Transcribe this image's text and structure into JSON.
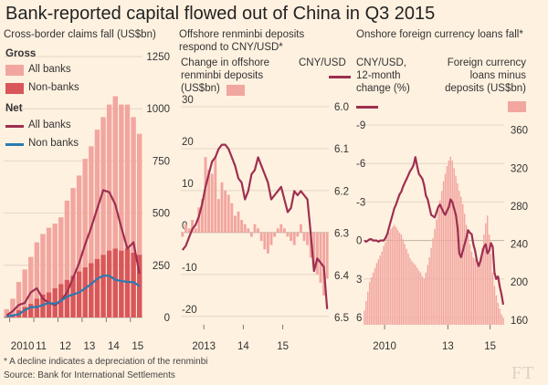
{
  "title": "Bank-reported capital flowed out of China in Q3 2015",
  "footnote": "* A decline indicates a depreciation of the renminbi",
  "source": "Source: Bank for International Settlements",
  "brand": "FT",
  "colors": {
    "bg": "#fff1e0",
    "bar_light": "#f2a6a0",
    "bar_dark": "#d9575a",
    "line_red": "#9e2f50",
    "line_blue": "#2a7ab0",
    "grid": "#e3d6c6",
    "zero": "#bfb3a5"
  },
  "chart_data": [
    {
      "type": "bar",
      "subtitle": "Cross-border claims fall (US$bn)",
      "legend": {
        "gross_label": "Gross",
        "gross_items": [
          "All banks",
          "Non-banks"
        ],
        "net_label": "Net",
        "net_items": [
          "All banks",
          "Non banks"
        ]
      },
      "y_ticks": [
        "1250",
        "1000",
        "750",
        "500",
        "250",
        "0"
      ],
      "y_tick_values": [
        1250,
        1000,
        750,
        500,
        250,
        0
      ],
      "x_ticks": [
        "2010",
        "11",
        "12",
        "13",
        "14",
        "15"
      ],
      "ylim": [
        0,
        1250
      ],
      "quarters_from": "2009Q4",
      "series": [
        {
          "name": "Gross all banks",
          "kind": "bar",
          "values": [
            40,
            90,
            170,
            230,
            290,
            360,
            400,
            430,
            450,
            480,
            560,
            620,
            680,
            760,
            820,
            900,
            960,
            1020,
            1060,
            1020,
            1020,
            960,
            880
          ]
        },
        {
          "name": "Gross non-banks",
          "kind": "bar",
          "values": [
            5,
            15,
            35,
            50,
            65,
            90,
            110,
            120,
            140,
            160,
            180,
            200,
            220,
            240,
            260,
            280,
            300,
            320,
            330,
            320,
            330,
            310,
            300
          ]
        },
        {
          "name": "Net all banks",
          "kind": "line",
          "values": [
            10,
            30,
            60,
            70,
            120,
            140,
            90,
            70,
            60,
            80,
            120,
            190,
            260,
            350,
            430,
            520,
            610,
            600,
            540,
            430,
            330,
            360,
            210
          ]
        },
        {
          "name": "Net non banks",
          "kind": "line",
          "values": [
            5,
            10,
            15,
            35,
            50,
            50,
            60,
            70,
            65,
            80,
            100,
            110,
            120,
            140,
            160,
            185,
            200,
            200,
            180,
            175,
            170,
            170,
            150
          ]
        }
      ]
    },
    {
      "type": "bar",
      "subtitle": "Offshore renminbi deposits respond to CNY/USD*",
      "left_label": "Change in offshore renminbi deposits (US$bn)",
      "right_label": "CNY/USD",
      "left_ticks": [
        "30",
        "20",
        "10",
        "0",
        "-10",
        "-20"
      ],
      "left_tick_values": [
        30,
        20,
        10,
        0,
        -10,
        -20
      ],
      "right_ticks": [
        "6.0",
        "6.1",
        "6.2",
        "6.3",
        "6.4",
        "6.5"
      ],
      "right_tick_values": [
        6.0,
        6.1,
        6.2,
        6.3,
        6.4,
        6.5
      ],
      "x_ticks": [
        "2013",
        "14",
        "15"
      ],
      "ylim_left": [
        -22,
        30
      ],
      "ylim_right": [
        6.0,
        6.5
      ],
      "months_from": "2012-06",
      "series": [
        {
          "name": "Change in offshore renminbi deposits",
          "kind": "bar",
          "values": [
            -1,
            2,
            1,
            3,
            1,
            6,
            8,
            18,
            15,
            14,
            18,
            8,
            12,
            10,
            9,
            7,
            4,
            5,
            3,
            2,
            1,
            -1,
            2,
            1,
            -2,
            -4,
            -5,
            -3,
            -1,
            1,
            2,
            1,
            -1,
            -2,
            -3,
            -1,
            2,
            -2,
            -3,
            -6,
            -8,
            -10,
            -12,
            -15,
            -11
          ]
        },
        {
          "name": "CNY/USD",
          "kind": "line",
          "values": [
            6.34,
            6.33,
            6.31,
            6.29,
            6.28,
            6.26,
            6.23,
            6.19,
            6.16,
            6.13,
            6.12,
            6.1,
            6.09,
            6.09,
            6.1,
            6.12,
            6.14,
            6.17,
            6.18,
            6.22,
            6.2,
            6.16,
            6.15,
            6.12,
            6.14,
            6.16,
            6.18,
            6.22,
            6.21,
            6.2,
            6.19,
            6.22,
            6.25,
            6.24,
            6.2,
            6.21,
            6.2,
            6.21,
            6.22,
            6.3,
            6.39,
            6.36,
            6.37,
            6.38,
            6.48
          ]
        }
      ]
    },
    {
      "type": "bar",
      "subtitle": "Onshore foreign currency loans fall*",
      "left_label": "CNY/USD, 12-month change (%)",
      "right_label": "Foreign currency loans minus deposits (US$bn)",
      "left_ticks": [
        "-9",
        "-6",
        "-3",
        "0",
        "3",
        "6"
      ],
      "left_tick_values": [
        -9,
        -6,
        -3,
        0,
        3,
        6
      ],
      "right_ticks": [
        "360",
        "320",
        "280",
        "240",
        "200",
        "160"
      ],
      "right_tick_values": [
        360,
        320,
        280,
        240,
        200,
        160
      ],
      "x_ticks": [
        "2010",
        "13",
        "15"
      ],
      "ylim_left": [
        -9,
        6
      ],
      "ylim_right": [
        155,
        375
      ],
      "months_from": "2009-01",
      "series": [
        {
          "name": "Foreign currency loans minus deposits",
          "kind": "bar",
          "values": [
            170,
            180,
            190,
            200,
            205,
            210,
            215,
            220,
            224,
            228,
            232,
            238,
            242,
            248,
            252,
            256,
            258,
            260,
            258,
            255,
            252,
            250,
            245,
            240,
            235,
            230,
            225,
            222,
            220,
            218,
            215,
            212,
            210,
            206,
            204,
            210,
            218,
            226,
            236,
            246,
            256,
            266,
            276,
            286,
            296,
            306,
            314,
            322,
            328,
            332,
            328,
            320,
            312,
            304,
            296,
            290,
            282,
            272,
            260,
            250,
            240,
            232,
            226,
            224,
            222,
            220,
            226,
            236,
            250,
            262,
            270,
            250,
            230,
            210,
            196,
            186,
            178,
            172,
            166,
            162
          ]
        },
        {
          "name": "CNY/USD, 12-month change",
          "kind": "line",
          "values": [
            0.0,
            0.1,
            0.0,
            -0.1,
            -0.1,
            0.0,
            0.0,
            0.0,
            0.1,
            0.0,
            0.0,
            0.0,
            -0.2,
            -0.5,
            -1.0,
            -1.5,
            -2.0,
            -2.5,
            -2.8,
            -3.2,
            -3.6,
            -3.8,
            -4.2,
            -4.5,
            -4.8,
            -5.1,
            -5.4,
            -5.6,
            -5.9,
            -6.5,
            -5.8,
            -5.2,
            -5.0,
            -4.8,
            -4.3,
            -3.5,
            -3.2,
            -2.6,
            -2.0,
            -1.9,
            -1.8,
            -2.2,
            -2.6,
            -2.8,
            -2.5,
            -2.2,
            -2.0,
            -2.3,
            -2.6,
            -3.2,
            -3.0,
            -2.5,
            -2.0,
            -1.0,
            1.0,
            1.3,
            0.8,
            0.3,
            -0.2,
            -0.8,
            -0.6,
            -0.5,
            0.3,
            0.8,
            1.6,
            2.0,
            1.6,
            1.0,
            0.5,
            0.3,
            1.0,
            0.8,
            0.2,
            0.5,
            2.5,
            3.0,
            2.8,
            3.6,
            4.2,
            5.0
          ]
        }
      ]
    }
  ]
}
